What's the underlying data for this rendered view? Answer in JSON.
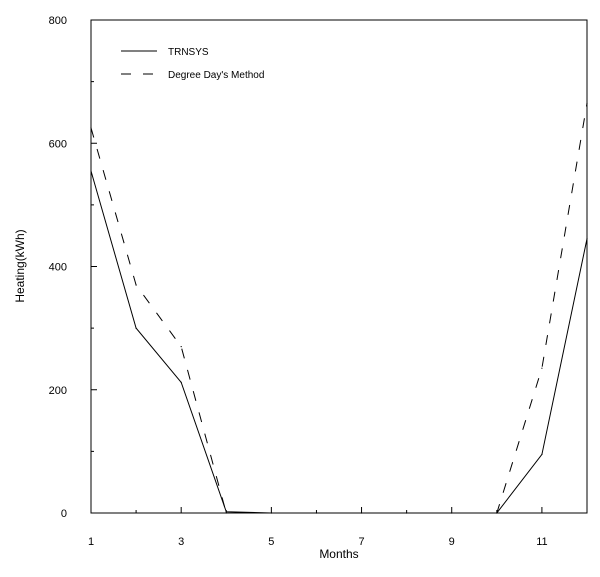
{
  "chart_data": {
    "type": "line",
    "xlabel": "Months",
    "ylabel": "Heating(kWh)",
    "xlim": [
      1,
      12
    ],
    "ylim": [
      0,
      800
    ],
    "xticks": [
      1,
      3,
      5,
      7,
      9,
      11
    ],
    "yticks": [
      0,
      200,
      400,
      600,
      800
    ],
    "grid": false,
    "legend_position": "top-left",
    "x": [
      1,
      2,
      3,
      4,
      5,
      6,
      7,
      8,
      9,
      10,
      11,
      12
    ],
    "series": [
      {
        "name": "TRNSYS",
        "style": "solid",
        "values": [
          555,
          300,
          212,
          2,
          0,
          0,
          0,
          0,
          0,
          0,
          95,
          445
        ]
      },
      {
        "name": "Degree Day's Method",
        "style": "dashed",
        "values": [
          625,
          370,
          270,
          0,
          0,
          0,
          0,
          0,
          0,
          0,
          235,
          665
        ]
      }
    ]
  }
}
